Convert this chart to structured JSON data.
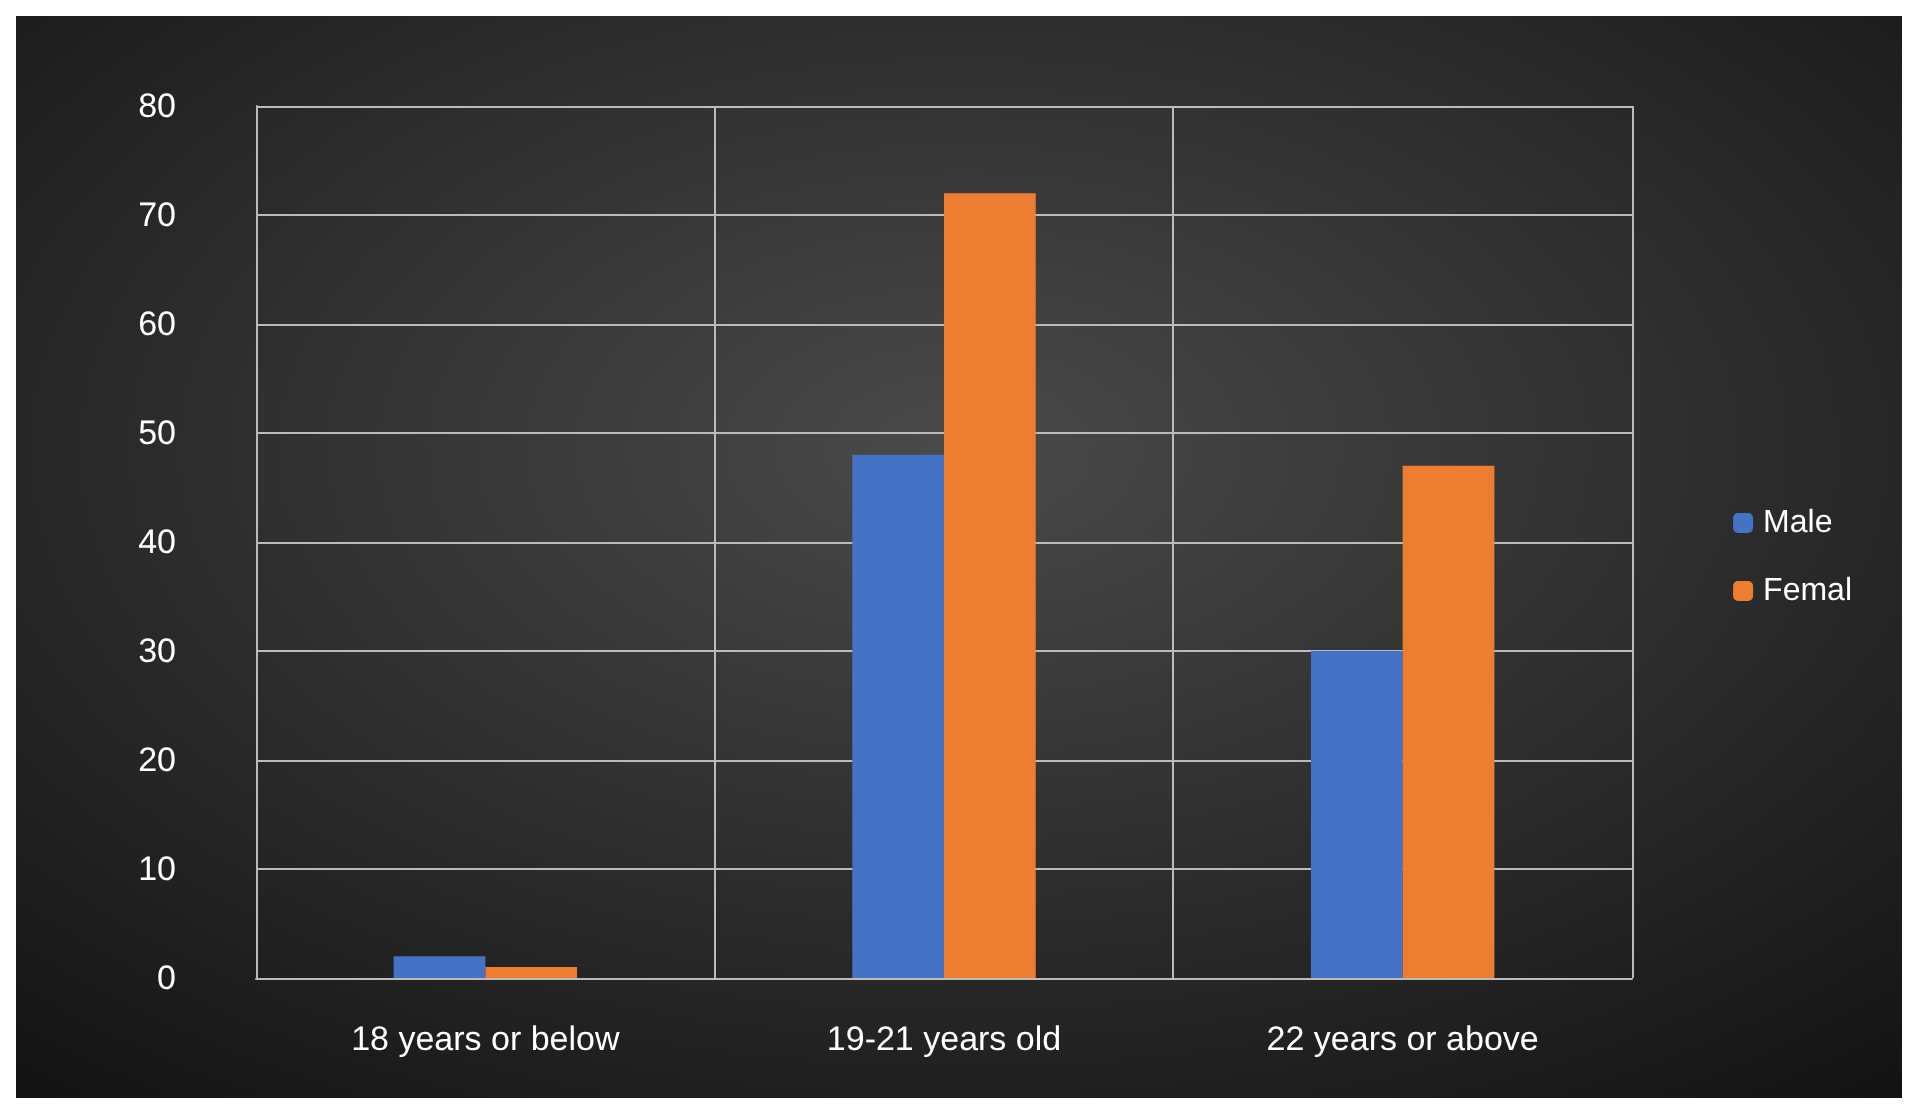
{
  "chart_data": {
    "type": "bar",
    "categories": [
      "18 years or below",
      "19-21 years old",
      "22 years or above"
    ],
    "series": [
      {
        "name": "Male",
        "color": "#4472c4",
        "values": [
          2,
          48,
          30
        ]
      },
      {
        "name": "Femal",
        "color": "#ed7d31",
        "values": [
          1,
          72,
          47
        ]
      }
    ],
    "ylim": [
      0,
      80
    ],
    "yticks": [
      0,
      10,
      20,
      30,
      40,
      50,
      60,
      70,
      80
    ],
    "grid": true,
    "legend": "right"
  }
}
